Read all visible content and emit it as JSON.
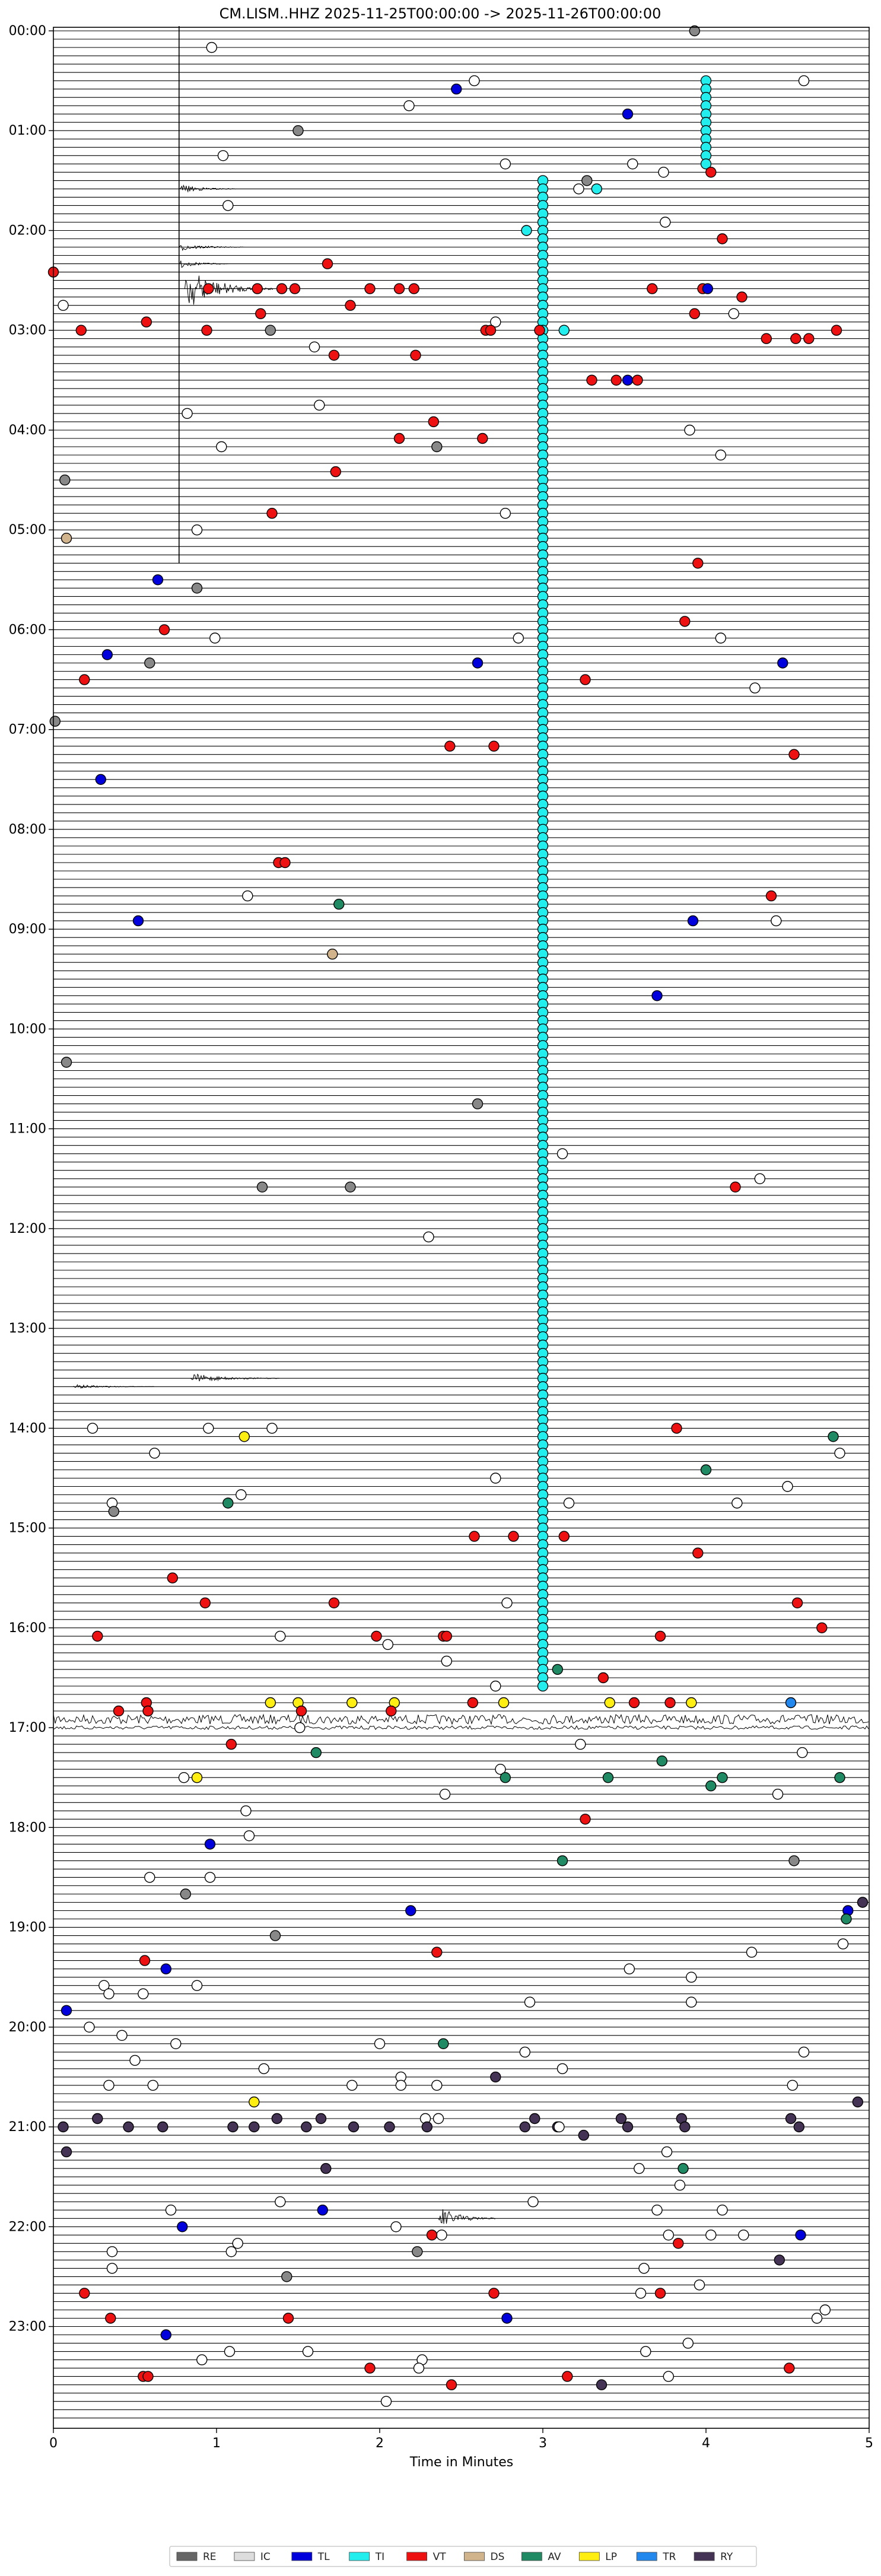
{
  "chart_data": {
    "type": "helicorder",
    "title": "CM.LISM..HHZ  2025-11-25T00:00:00 -> 2025-11-26T00:00:00",
    "xlabel": "Time in Minutes",
    "xlim": [
      0,
      5
    ],
    "x_ticks": [
      0,
      1,
      2,
      3,
      4,
      5
    ],
    "row_minutes": 5,
    "rows": 288,
    "hour_labels": [
      "00:00",
      "01:00",
      "02:00",
      "03:00",
      "04:00",
      "05:00",
      "06:00",
      "07:00",
      "08:00",
      "09:00",
      "10:00",
      "11:00",
      "12:00",
      "13:00",
      "14:00",
      "15:00",
      "16:00",
      "17:00",
      "18:00",
      "19:00",
      "20:00",
      "21:00",
      "22:00",
      "23:00"
    ],
    "legend": [
      {
        "code": "RE",
        "color": "#666666"
      },
      {
        "code": "IC",
        "color": "#dddddd"
      },
      {
        "code": "TL",
        "color": "#0000dd"
      },
      {
        "code": "TI",
        "color": "#22eeee"
      },
      {
        "code": "VT",
        "color": "#ee1111"
      },
      {
        "code": "DS",
        "color": "#d2b48c"
      },
      {
        "code": "AV",
        "color": "#1f8a63"
      },
      {
        "code": "LP",
        "color": "#ffee11"
      },
      {
        "code": "TR",
        "color": "#2288ee"
      },
      {
        "code": "RY",
        "color": "#443355"
      }
    ],
    "event_colors": {
      "w": "#ffffff",
      "g": "#888888",
      "b": "#0000dd",
      "c": "#22eeee",
      "r": "#ee1111",
      "t": "#d2b48c",
      "a": "#1f8a63",
      "y": "#ffee11",
      "l": "#2288ee",
      "p": "#443355"
    },
    "bursts": [
      {
        "row": 19,
        "x_min": 0.77,
        "amp": 9,
        "width": 0.35
      },
      {
        "row": 26,
        "x_min": 0.77,
        "amp": 7,
        "width": 0.4
      },
      {
        "row": 28,
        "x_min": 0.77,
        "amp": 8,
        "width": 0.3
      },
      {
        "row": 31,
        "x_min": 0.8,
        "amp": 40,
        "width": 0.55
      },
      {
        "row": 162,
        "x_min": 0.84,
        "amp": 9,
        "width": 0.55
      },
      {
        "row": 163,
        "x_min": 0.12,
        "amp": 4,
        "width": 0.5
      },
      {
        "row": 263,
        "x_min": 2.36,
        "amp": 22,
        "width": 0.35
      }
    ],
    "noisy_rows": [
      {
        "row": 203,
        "amp": 8
      },
      {
        "row": 204,
        "amp": 3
      }
    ],
    "vertical_trace": {
      "x_min": 0.77,
      "from_row": 0,
      "to_row": 64
    },
    "events": [
      [
        0,
        3.93,
        "g"
      ],
      [
        2,
        0.97,
        "w"
      ],
      [
        6,
        2.58,
        "w"
      ],
      [
        6,
        4.6,
        "w"
      ],
      [
        7,
        2.47,
        "b"
      ],
      [
        9,
        2.18,
        "w"
      ],
      [
        10,
        3.52,
        "b"
      ],
      [
        12,
        1.5,
        "g"
      ],
      [
        15,
        1.04,
        "w"
      ],
      [
        16,
        2.77,
        "w"
      ],
      [
        16,
        3.55,
        "w"
      ],
      [
        17,
        4.03,
        "r"
      ],
      [
        17,
        3.74,
        "w"
      ],
      [
        18,
        3.27,
        "g"
      ],
      [
        19,
        3.22,
        "w"
      ],
      [
        19,
        3.33,
        "c"
      ],
      [
        21,
        1.07,
        "w"
      ],
      [
        23,
        3.75,
        "w"
      ],
      [
        24,
        2.9,
        "c"
      ],
      [
        25,
        4.1,
        "r"
      ],
      [
        28,
        1.68,
        "r"
      ],
      [
        29,
        0.0,
        "r"
      ],
      [
        31,
        0.95,
        "r"
      ],
      [
        31,
        1.25,
        "r"
      ],
      [
        31,
        1.4,
        "r"
      ],
      [
        31,
        1.48,
        "r"
      ],
      [
        31,
        1.94,
        "r"
      ],
      [
        31,
        2.12,
        "r"
      ],
      [
        31,
        2.21,
        "r"
      ],
      [
        31,
        3.67,
        "r"
      ],
      [
        31,
        3.98,
        "r"
      ],
      [
        31,
        4.01,
        "b"
      ],
      [
        32,
        4.22,
        "r"
      ],
      [
        33,
        0.06,
        "w"
      ],
      [
        33,
        1.82,
        "r"
      ],
      [
        34,
        1.27,
        "r"
      ],
      [
        34,
        3.93,
        "r"
      ],
      [
        34,
        4.17,
        "w"
      ],
      [
        35,
        0.57,
        "r"
      ],
      [
        35,
        2.71,
        "w"
      ],
      [
        36,
        0.17,
        "r"
      ],
      [
        36,
        0.94,
        "r"
      ],
      [
        36,
        1.33,
        "g"
      ],
      [
        36,
        2.65,
        "r"
      ],
      [
        36,
        2.68,
        "r"
      ],
      [
        36,
        2.98,
        "r"
      ],
      [
        36,
        3.13,
        "c"
      ],
      [
        36,
        4.8,
        "r"
      ],
      [
        37,
        4.37,
        "r"
      ],
      [
        37,
        4.55,
        "r"
      ],
      [
        37,
        4.63,
        "r"
      ],
      [
        38,
        1.6,
        "w"
      ],
      [
        39,
        1.72,
        "r"
      ],
      [
        39,
        2.22,
        "r"
      ],
      [
        42,
        3.3,
        "r"
      ],
      [
        42,
        3.45,
        "r"
      ],
      [
        42,
        3.52,
        "b"
      ],
      [
        42,
        3.58,
        "r"
      ],
      [
        45,
        1.63,
        "w"
      ],
      [
        46,
        0.82,
        "w"
      ],
      [
        47,
        2.33,
        "r"
      ],
      [
        48,
        3.9,
        "w"
      ],
      [
        49,
        2.12,
        "r"
      ],
      [
        49,
        2.63,
        "r"
      ],
      [
        50,
        2.35,
        "g"
      ],
      [
        50,
        1.03,
        "w"
      ],
      [
        51,
        4.09,
        "w"
      ],
      [
        53,
        1.73,
        "r"
      ],
      [
        54,
        0.07,
        "g"
      ],
      [
        58,
        1.34,
        "r"
      ],
      [
        58,
        2.77,
        "w"
      ],
      [
        60,
        0.88,
        "w"
      ],
      [
        61,
        0.08,
        "t"
      ],
      [
        64,
        3.95,
        "r"
      ],
      [
        66,
        0.64,
        "b"
      ],
      [
        67,
        0.88,
        "g"
      ],
      [
        71,
        3.87,
        "r"
      ],
      [
        72,
        0.68,
        "r"
      ],
      [
        73,
        0.99,
        "w"
      ],
      [
        73,
        2.85,
        "w"
      ],
      [
        73,
        4.09,
        "w"
      ],
      [
        75,
        0.33,
        "b"
      ],
      [
        76,
        0.59,
        "g"
      ],
      [
        76,
        2.6,
        "b"
      ],
      [
        76,
        4.47,
        "b"
      ],
      [
        78,
        0.19,
        "r"
      ],
      [
        78,
        3.26,
        "r"
      ],
      [
        79,
        4.3,
        "w"
      ],
      [
        83,
        0.01,
        "g"
      ],
      [
        86,
        2.43,
        "r"
      ],
      [
        86,
        2.7,
        "r"
      ],
      [
        87,
        4.54,
        "r"
      ],
      [
        90,
        0.29,
        "b"
      ],
      [
        100,
        1.38,
        "r"
      ],
      [
        100,
        1.42,
        "r"
      ],
      [
        104,
        4.4,
        "r"
      ],
      [
        104,
        1.19,
        "w"
      ],
      [
        105,
        1.75,
        "a"
      ],
      [
        107,
        3.92,
        "b"
      ],
      [
        107,
        0.52,
        "b"
      ],
      [
        107,
        4.43,
        "w"
      ],
      [
        111,
        1.71,
        "t"
      ],
      [
        116,
        3.7,
        "b"
      ],
      [
        124,
        0.08,
        "g"
      ],
      [
        129,
        2.6,
        "g"
      ],
      [
        135,
        3.12,
        "w"
      ],
      [
        138,
        4.33,
        "w"
      ],
      [
        139,
        4.18,
        "r"
      ],
      [
        139,
        1.28,
        "g"
      ],
      [
        139,
        1.82,
        "g"
      ],
      [
        145,
        2.3,
        "w"
      ],
      [
        168,
        3.82,
        "r"
      ],
      [
        168,
        0.24,
        "w"
      ],
      [
        168,
        0.95,
        "w"
      ],
      [
        168,
        1.34,
        "w"
      ],
      [
        169,
        1.17,
        "y"
      ],
      [
        169,
        4.78,
        "a"
      ],
      [
        171,
        0.62,
        "w"
      ],
      [
        171,
        4.82,
        "w"
      ],
      [
        173,
        4.0,
        "a"
      ],
      [
        174,
        2.71,
        "w"
      ],
      [
        175,
        4.5,
        "w"
      ],
      [
        176,
        1.15,
        "w"
      ],
      [
        177,
        4.19,
        "w"
      ],
      [
        177,
        3.16,
        "w"
      ],
      [
        177,
        0.36,
        "w"
      ],
      [
        177,
        1.07,
        "a"
      ],
      [
        178,
        0.37,
        "g"
      ],
      [
        181,
        2.58,
        "r"
      ],
      [
        181,
        2.82,
        "r"
      ],
      [
        181,
        3.13,
        "r"
      ],
      [
        183,
        3.95,
        "r"
      ],
      [
        186,
        0.73,
        "r"
      ],
      [
        189,
        0.93,
        "r"
      ],
      [
        189,
        1.72,
        "r"
      ],
      [
        189,
        2.78,
        "w"
      ],
      [
        189,
        4.56,
        "r"
      ],
      [
        192,
        4.71,
        "r"
      ],
      [
        193,
        0.27,
        "r"
      ],
      [
        193,
        1.39,
        "w"
      ],
      [
        193,
        1.98,
        "r"
      ],
      [
        193,
        2.39,
        "r"
      ],
      [
        193,
        2.41,
        "r"
      ],
      [
        193,
        3.72,
        "r"
      ],
      [
        194,
        2.05,
        "w"
      ],
      [
        196,
        2.41,
        "w"
      ],
      [
        197,
        3.09,
        "a"
      ],
      [
        198,
        3.37,
        "r"
      ],
      [
        199,
        2.71,
        "w"
      ],
      [
        201,
        0.57,
        "r"
      ],
      [
        201,
        1.33,
        "y"
      ],
      [
        201,
        1.5,
        "y"
      ],
      [
        201,
        1.83,
        "y"
      ],
      [
        201,
        2.09,
        "y"
      ],
      [
        201,
        2.57,
        "r"
      ],
      [
        201,
        2.76,
        "y"
      ],
      [
        201,
        3.41,
        "y"
      ],
      [
        201,
        3.56,
        "r"
      ],
      [
        201,
        3.78,
        "r"
      ],
      [
        201,
        3.91,
        "y"
      ],
      [
        201,
        4.52,
        "l"
      ],
      [
        202,
        0.4,
        "r"
      ],
      [
        202,
        0.58,
        "r"
      ],
      [
        202,
        1.52,
        "r"
      ],
      [
        202,
        2.07,
        "r"
      ],
      [
        204,
        1.51,
        "w"
      ],
      [
        206,
        1.09,
        "r"
      ],
      [
        206,
        3.23,
        "w"
      ],
      [
        207,
        4.59,
        "w"
      ],
      [
        207,
        1.61,
        "a"
      ],
      [
        208,
        3.73,
        "a"
      ],
      [
        209,
        2.74,
        "w"
      ],
      [
        210,
        0.8,
        "w"
      ],
      [
        210,
        0.88,
        "y"
      ],
      [
        210,
        2.77,
        "a"
      ],
      [
        210,
        3.4,
        "a"
      ],
      [
        210,
        4.1,
        "a"
      ],
      [
        210,
        4.82,
        "a"
      ],
      [
        211,
        4.03,
        "a"
      ],
      [
        212,
        2.4,
        "w"
      ],
      [
        212,
        4.44,
        "w"
      ],
      [
        214,
        1.18,
        "w"
      ],
      [
        215,
        3.26,
        "r"
      ],
      [
        217,
        1.2,
        "w"
      ],
      [
        218,
        0.96,
        "b"
      ],
      [
        220,
        4.54,
        "g"
      ],
      [
        220,
        3.12,
        "a"
      ],
      [
        222,
        0.59,
        "w"
      ],
      [
        222,
        0.96,
        "w"
      ],
      [
        224,
        0.81,
        "g"
      ],
      [
        225,
        4.96,
        "p"
      ],
      [
        226,
        4.87,
        "b"
      ],
      [
        226,
        2.19,
        "b"
      ],
      [
        227,
        4.86,
        "a"
      ],
      [
        229,
        1.36,
        "g"
      ],
      [
        230,
        4.84,
        "w"
      ],
      [
        231,
        4.28,
        "w"
      ],
      [
        231,
        2.35,
        "r"
      ],
      [
        232,
        0.56,
        "r"
      ],
      [
        233,
        0.69,
        "b"
      ],
      [
        233,
        3.53,
        "w"
      ],
      [
        234,
        3.91,
        "w"
      ],
      [
        235,
        0.88,
        "w"
      ],
      [
        235,
        0.31,
        "w"
      ],
      [
        236,
        0.55,
        "w"
      ],
      [
        236,
        0.34,
        "w"
      ],
      [
        237,
        2.92,
        "w"
      ],
      [
        237,
        3.91,
        "w"
      ],
      [
        238,
        0.08,
        "b"
      ],
      [
        240,
        0.22,
        "w"
      ],
      [
        241,
        0.42,
        "w"
      ],
      [
        242,
        0.75,
        "w"
      ],
      [
        242,
        2.0,
        "w"
      ],
      [
        242,
        2.39,
        "a"
      ],
      [
        243,
        2.89,
        "w"
      ],
      [
        243,
        4.6,
        "w"
      ],
      [
        244,
        0.5,
        "w"
      ],
      [
        245,
        3.12,
        "w"
      ],
      [
        245,
        1.29,
        "w"
      ],
      [
        246,
        2.13,
        "w"
      ],
      [
        246,
        2.71,
        "p"
      ],
      [
        247,
        4.53,
        "w"
      ],
      [
        247,
        0.61,
        "w"
      ],
      [
        247,
        1.83,
        "w"
      ],
      [
        247,
        2.13,
        "w"
      ],
      [
        247,
        2.35,
        "w"
      ],
      [
        247,
        0.34,
        "w"
      ],
      [
        249,
        1.23,
        "y"
      ],
      [
        249,
        4.93,
        "p"
      ],
      [
        251,
        2.28,
        "w"
      ],
      [
        251,
        2.36,
        "w"
      ],
      [
        251,
        0.27,
        "p"
      ],
      [
        251,
        1.37,
        "p"
      ],
      [
        251,
        1.64,
        "p"
      ],
      [
        251,
        2.95,
        "p"
      ],
      [
        251,
        3.48,
        "p"
      ],
      [
        251,
        3.85,
        "p"
      ],
      [
        251,
        4.52,
        "p"
      ],
      [
        252,
        0.06,
        "p"
      ],
      [
        252,
        0.46,
        "p"
      ],
      [
        252,
        0.67,
        "p"
      ],
      [
        252,
        1.1,
        "p"
      ],
      [
        252,
        1.23,
        "p"
      ],
      [
        252,
        1.55,
        "p"
      ],
      [
        252,
        1.84,
        "p"
      ],
      [
        252,
        2.06,
        "p"
      ],
      [
        252,
        2.29,
        "p"
      ],
      [
        252,
        2.89,
        "p"
      ],
      [
        252,
        3.09,
        "p"
      ],
      [
        252,
        3.1,
        "w"
      ],
      [
        252,
        3.52,
        "p"
      ],
      [
        252,
        3.87,
        "p"
      ],
      [
        252,
        4.57,
        "p"
      ],
      [
        253,
        3.25,
        "p"
      ],
      [
        255,
        0.08,
        "p"
      ],
      [
        255,
        3.76,
        "w"
      ],
      [
        257,
        1.67,
        "p"
      ],
      [
        257,
        3.86,
        "a"
      ],
      [
        257,
        3.59,
        "w"
      ],
      [
        259,
        3.84,
        "w"
      ],
      [
        261,
        1.39,
        "w"
      ],
      [
        261,
        2.94,
        "w"
      ],
      [
        262,
        0.72,
        "w"
      ],
      [
        262,
        1.65,
        "b"
      ],
      [
        262,
        3.7,
        "w"
      ],
      [
        262,
        4.1,
        "w"
      ],
      [
        264,
        0.79,
        "b"
      ],
      [
        264,
        2.1,
        "w"
      ],
      [
        265,
        2.38,
        "w"
      ],
      [
        265,
        2.32,
        "r"
      ],
      [
        265,
        3.77,
        "w"
      ],
      [
        265,
        4.03,
        "w"
      ],
      [
        265,
        4.23,
        "w"
      ],
      [
        265,
        4.58,
        "b"
      ],
      [
        266,
        3.83,
        "r"
      ],
      [
        266,
        1.13,
        "w"
      ],
      [
        267,
        1.09,
        "w"
      ],
      [
        267,
        0.36,
        "w"
      ],
      [
        267,
        2.23,
        "g"
      ],
      [
        268,
        4.45,
        "p"
      ],
      [
        269,
        0.36,
        "w"
      ],
      [
        269,
        3.62,
        "w"
      ],
      [
        270,
        1.43,
        "g"
      ],
      [
        271,
        3.96,
        "w"
      ],
      [
        272,
        0.19,
        "r"
      ],
      [
        272,
        3.6,
        "w"
      ],
      [
        272,
        2.7,
        "r"
      ],
      [
        272,
        3.72,
        "r"
      ],
      [
        274,
        4.73,
        "w"
      ],
      [
        275,
        0.35,
        "r"
      ],
      [
        275,
        1.44,
        "r"
      ],
      [
        275,
        2.78,
        "b"
      ],
      [
        275,
        4.68,
        "w"
      ],
      [
        277,
        0.69,
        "b"
      ],
      [
        278,
        3.89,
        "w"
      ],
      [
        279,
        1.08,
        "w"
      ],
      [
        279,
        1.56,
        "w"
      ],
      [
        279,
        3.63,
        "w"
      ],
      [
        280,
        0.91,
        "w"
      ],
      [
        280,
        2.26,
        "w"
      ],
      [
        281,
        2.24,
        "w"
      ],
      [
        281,
        1.94,
        "r"
      ],
      [
        281,
        4.51,
        "r"
      ],
      [
        282,
        0.55,
        "r"
      ],
      [
        282,
        3.77,
        "w"
      ],
      [
        282,
        0.58,
        "r"
      ],
      [
        282,
        3.15,
        "r"
      ],
      [
        283,
        2.44,
        "r"
      ],
      [
        283,
        3.36,
        "p"
      ],
      [
        285,
        2.04,
        "w"
      ]
    ]
  }
}
